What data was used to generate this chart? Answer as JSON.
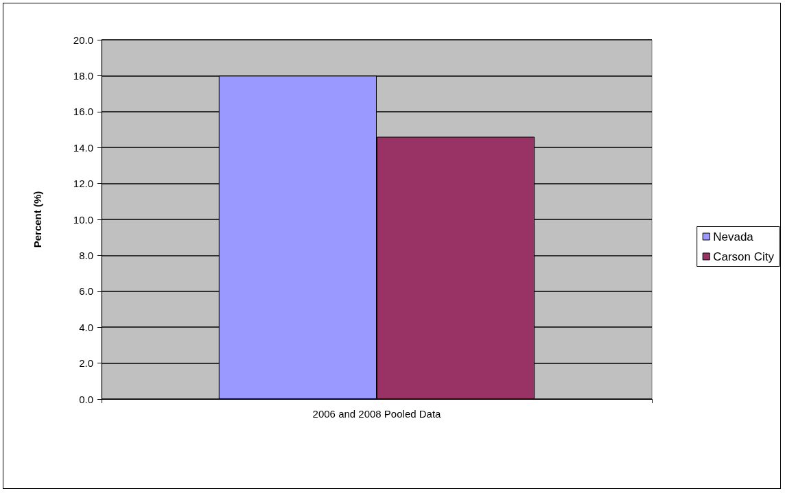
{
  "chart_data": {
    "type": "bar",
    "ylabel": "Percent (%)",
    "categories": [
      "2006 and 2008 Pooled Data"
    ],
    "series": [
      {
        "name": "Nevada",
        "color": "#9999ff",
        "values": [
          18.0
        ]
      },
      {
        "name": "Carson City",
        "color": "#993366",
        "values": [
          14.6
        ]
      }
    ],
    "ylim": [
      0,
      20
    ],
    "yticks": [
      {
        "value": 0,
        "label": "0.0"
      },
      {
        "value": 2,
        "label": "2.0"
      },
      {
        "value": 4,
        "label": "4.0"
      },
      {
        "value": 6,
        "label": "6.0"
      },
      {
        "value": 8,
        "label": "8.0"
      },
      {
        "value": 10,
        "label": "10.0"
      },
      {
        "value": 12,
        "label": "12.0"
      },
      {
        "value": 14,
        "label": "14.0"
      },
      {
        "value": 16,
        "label": "16.0"
      },
      {
        "value": 18,
        "label": "18.0"
      },
      {
        "value": 20,
        "label": "20.0"
      }
    ],
    "grid": "y",
    "legend": "right"
  }
}
